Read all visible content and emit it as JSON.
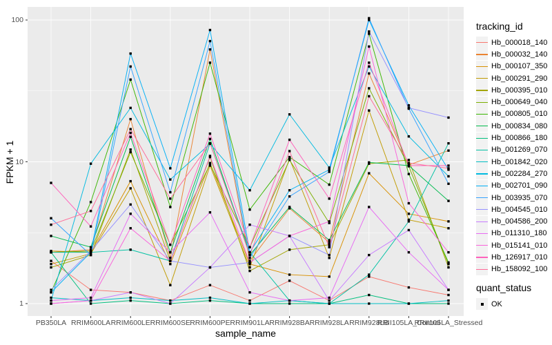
{
  "figure": {
    "background": "#FFFFFF",
    "panel_bg": "#EBEBEB",
    "grid_color": "#FFFFFF",
    "tick_color": "#333333",
    "axis_text_color": "#4D4D4D",
    "axis_title_color": "#000000",
    "marker_color": "#000000"
  },
  "legend": {
    "tracking_title": "tracking_id",
    "quant_title": "quant_status",
    "quant_items": [
      {
        "label": "OK",
        "marker_color": "#000000"
      }
    ]
  },
  "chart_data": {
    "type": "line",
    "title": "",
    "xlabel": "sample_name",
    "ylabel": "FPKM + 1",
    "y_scale": "log10",
    "ylim": [
      0.82,
      124
    ],
    "y_ticks": [
      {
        "label": "1",
        "value": 1
      },
      {
        "label": "10",
        "value": 10
      },
      {
        "label": "100",
        "value": 100
      }
    ],
    "grid": true,
    "legend_position": "right",
    "marker": "black-square",
    "categories": [
      "PB350LA",
      "RRIM600LA",
      "RRIM600LE",
      "RRIM600SE",
      "RRIM600PE",
      "RRIM901LA",
      "RRIM928BA",
      "RRIM928LA",
      "RRIM928LB",
      "RRII105LA_Control",
      "RRII105LA_Stressed"
    ],
    "series": [
      {
        "name": "Hb_000018_140",
        "color": "#F8766D",
        "values": [
          2.0,
          1.25,
          1.2,
          1.05,
          1.35,
          1.05,
          1.45,
          1.05,
          1.55,
          1.3,
          1.15
        ]
      },
      {
        "name": "Hb_000032_140",
        "color": "#EA8331",
        "values": [
          2.3,
          2.4,
          20,
          2.1,
          62,
          2.0,
          4.7,
          2.7,
          42,
          9.5,
          12
        ]
      },
      {
        "name": "Hb_000107_350",
        "color": "#D89000",
        "values": [
          2.35,
          2.3,
          7.3,
          1.9,
          9.8,
          1.9,
          1.6,
          1.55,
          8.3,
          4.3,
          3.8
        ]
      },
      {
        "name": "Hb_000291_290",
        "color": "#C09B00",
        "values": [
          1.9,
          2.25,
          6.5,
          1.35,
          9.4,
          1.8,
          10.5,
          2.1,
          23,
          3.9,
          3.4
        ]
      },
      {
        "name": "Hb_000395_010",
        "color": "#A3A500",
        "values": [
          1.8,
          2.2,
          12.2,
          2.0,
          10.8,
          1.7,
          2.4,
          2.6,
          9.7,
          10.3,
          1.8
        ]
      },
      {
        "name": "Hb_000649_040",
        "color": "#7CAE00",
        "values": [
          2.3,
          2.35,
          11.7,
          2.6,
          9.6,
          2.5,
          10.3,
          3.7,
          33,
          9.3,
          1.9
        ]
      },
      {
        "name": "Hb_000805_010",
        "color": "#39B600",
        "values": [
          1.2,
          5.2,
          38,
          4.8,
          50,
          4.6,
          10.8,
          6.9,
          80,
          8.2,
          1.95
        ]
      },
      {
        "name": "Hb_000834_080",
        "color": "#00BB4E",
        "values": [
          3.0,
          2.5,
          15,
          2.3,
          14.5,
          2.2,
          4.8,
          2.8,
          9.9,
          9.4,
          5.3
        ]
      },
      {
        "name": "Hb_000866_180",
        "color": "#00BF7D",
        "values": [
          2.3,
          1.0,
          1.05,
          1.0,
          1.05,
          1.0,
          1.0,
          1.0,
          1.15,
          1.0,
          1.0
        ]
      },
      {
        "name": "Hb_001269_070",
        "color": "#00C1A3",
        "values": [
          2.3,
          2.3,
          2.4,
          2.0,
          13.5,
          2.3,
          1.05,
          1.0,
          1.6,
          3.8,
          13.5
        ]
      },
      {
        "name": "Hb_001842_020",
        "color": "#00BFC4",
        "values": [
          1.1,
          1.05,
          1.1,
          1.05,
          1.1,
          1.0,
          1.05,
          1.0,
          1.0,
          1.0,
          1.05
        ]
      },
      {
        "name": "Hb_002284_270",
        "color": "#00BAE0",
        "values": [
          1.05,
          9.7,
          24,
          7.5,
          13.4,
          6.3,
          21.6,
          9.1,
          47,
          15.1,
          7.9
        ]
      },
      {
        "name": "Hb_002701_090",
        "color": "#00B0F6",
        "values": [
          1.2,
          2.3,
          58,
          9.0,
          85,
          2.3,
          6.3,
          8.8,
          100,
          25,
          8.8
        ]
      },
      {
        "name": "Hb_003935_070",
        "color": "#35A2FF",
        "values": [
          4.0,
          2.2,
          47,
          6.1,
          71,
          2.1,
          5.7,
          8.5,
          103,
          23.7,
          7.0
        ]
      },
      {
        "name": "Hb_004545_010",
        "color": "#9590FF",
        "values": [
          1.25,
          2.35,
          5.0,
          2.0,
          1.8,
          1.95,
          3.0,
          2.2,
          83,
          24,
          20.5
        ]
      },
      {
        "name": "Hb_004586_200",
        "color": "#C77CFF",
        "values": [
          1.0,
          1.05,
          1.2,
          1.0,
          1.8,
          3.6,
          3.0,
          1.05,
          2.2,
          3.3,
          1.25
        ]
      },
      {
        "name": "Hb_011310_180",
        "color": "#E76BF3",
        "values": [
          1.05,
          1.1,
          4.3,
          2.3,
          4.4,
          1.2,
          1.05,
          1.1,
          4.8,
          2.3,
          1.25
        ]
      },
      {
        "name": "Hb_015141_010",
        "color": "#FA62DB",
        "values": [
          1.0,
          1.05,
          3.4,
          2.0,
          11,
          1.95,
          3.0,
          3.8,
          65,
          5.1,
          2.3
        ]
      },
      {
        "name": "Hb_126917_010",
        "color": "#FF62BC",
        "values": [
          7.1,
          3.5,
          16,
          2.6,
          15.8,
          2.5,
          14.3,
          5.5,
          50,
          9.4,
          9.4
        ]
      },
      {
        "name": "Hb_158092_100",
        "color": "#FF6A98",
        "values": [
          3.6,
          4.5,
          17,
          5.5,
          13.5,
          2.2,
          11.9,
          2.5,
          29,
          9.8,
          9.0
        ]
      }
    ]
  }
}
